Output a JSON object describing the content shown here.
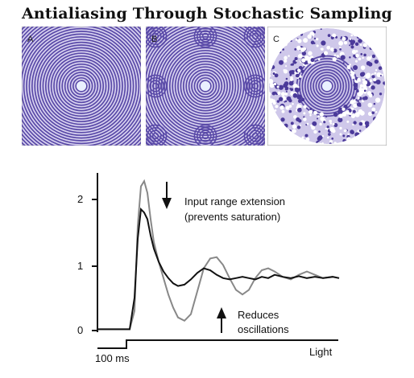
{
  "title": "Antialiasing Through Stochastic Sampling",
  "panels": [
    {
      "letter": "A"
    },
    {
      "letter": "B"
    },
    {
      "letter": "C"
    }
  ],
  "chart_data": {
    "type": "line",
    "y_ticks": [
      "0",
      "1",
      "2"
    ],
    "ylim": [
      0,
      2.4
    ],
    "annotations": {
      "top_line1": "Input range extension",
      "top_line2": "(prevents saturation)",
      "bottom_line1": "Reduces",
      "bottom_line2": "oscillations"
    },
    "time_scale_label": "100 ms",
    "stimulus_label": "Light",
    "series": [
      {
        "color": "#888888",
        "x": [
          0,
          40,
          46,
          50,
          54,
          58,
          62,
          66,
          70,
          76,
          82,
          88,
          94,
          100,
          108,
          116,
          124,
          132,
          140,
          148,
          156,
          164,
          172,
          180,
          188,
          196,
          204,
          212,
          220,
          230,
          240,
          250,
          260,
          270,
          280,
          292,
          300
        ],
        "y": [
          0.02,
          0.02,
          0.3,
          1.6,
          2.2,
          2.28,
          2.1,
          1.7,
          1.35,
          1.05,
          0.8,
          0.55,
          0.35,
          0.2,
          0.15,
          0.25,
          0.6,
          0.95,
          1.1,
          1.12,
          1.0,
          0.8,
          0.62,
          0.55,
          0.62,
          0.8,
          0.92,
          0.95,
          0.9,
          0.82,
          0.78,
          0.85,
          0.9,
          0.85,
          0.8,
          0.82,
          0.8
        ]
      },
      {
        "color": "#111111",
        "x": [
          0,
          40,
          46,
          50,
          54,
          58,
          62,
          66,
          70,
          76,
          82,
          88,
          94,
          100,
          108,
          116,
          124,
          132,
          140,
          148,
          156,
          164,
          172,
          180,
          188,
          196,
          204,
          212,
          220,
          230,
          240,
          250,
          260,
          270,
          280,
          292,
          300
        ],
        "y": [
          0.02,
          0.02,
          0.5,
          1.4,
          1.85,
          1.8,
          1.7,
          1.45,
          1.25,
          1.05,
          0.9,
          0.8,
          0.72,
          0.68,
          0.7,
          0.78,
          0.88,
          0.95,
          0.92,
          0.85,
          0.8,
          0.78,
          0.8,
          0.82,
          0.8,
          0.78,
          0.82,
          0.8,
          0.85,
          0.82,
          0.8,
          0.83,
          0.8,
          0.82,
          0.8,
          0.82,
          0.8
        ]
      }
    ]
  }
}
